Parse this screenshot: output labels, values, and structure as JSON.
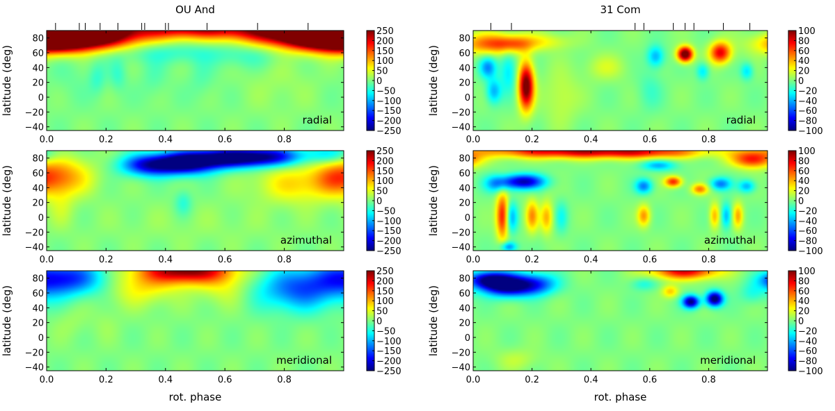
{
  "chart_data": [
    {
      "type": "heatmap",
      "title": "OU And",
      "component": "radial",
      "xlabel": "",
      "ylabel": "latitude (deg)",
      "xlim": [
        0.0,
        1.0
      ],
      "ylim": [
        -45,
        90
      ],
      "xticks": [
        "0.0",
        "0.2",
        "0.4",
        "0.6",
        "0.8"
      ],
      "yticks": [
        "80",
        "60",
        "40",
        "20",
        "0",
        "−20",
        "−40"
      ],
      "colorbar": {
        "min": -250,
        "max": 250,
        "ticks": [
          "250",
          "200",
          "150",
          "100",
          "50",
          "0",
          "−50",
          "−100",
          "−150",
          "−200",
          "−250"
        ]
      },
      "observation_phases": [
        0.03,
        0.11,
        0.13,
        0.18,
        0.24,
        0.32,
        0.33,
        0.4,
        0.41,
        0.54,
        0.71,
        0.88
      ],
      "blobs": [
        {
          "cx": 0.0,
          "cy": 85,
          "sx": 0.13,
          "sy": 13,
          "v": 280
        },
        {
          "cx": 0.15,
          "cy": 85,
          "sx": 0.12,
          "sy": 13,
          "v": 260
        },
        {
          "cx": 0.5,
          "cy": 97,
          "sx": 0.18,
          "sy": 12,
          "v": 260
        },
        {
          "cx": 0.85,
          "cy": 88,
          "sx": 0.13,
          "sy": 13,
          "v": 250
        },
        {
          "cx": 1.0,
          "cy": 82,
          "sx": 0.1,
          "sy": 14,
          "v": 260
        },
        {
          "cx": 0.42,
          "cy": 60,
          "sx": 0.14,
          "sy": 10,
          "v": -40
        },
        {
          "cx": 0.68,
          "cy": 55,
          "sx": 0.08,
          "sy": 12,
          "v": -30
        },
        {
          "cx": 0.08,
          "cy": 30,
          "sx": 0.05,
          "sy": 25,
          "v": -12
        },
        {
          "cx": 0.17,
          "cy": 25,
          "sx": 0.02,
          "sy": 15,
          "v": -35
        },
        {
          "cx": 0.24,
          "cy": 30,
          "sx": 0.02,
          "sy": 15,
          "v": -35
        },
        {
          "cx": 0.36,
          "cy": 25,
          "sx": 0.03,
          "sy": 20,
          "v": -20
        },
        {
          "cx": 0.52,
          "cy": 25,
          "sx": 0.03,
          "sy": 20,
          "v": -20
        },
        {
          "cx": 0.78,
          "cy": 20,
          "sx": 0.08,
          "sy": 30,
          "v": 15
        }
      ]
    },
    {
      "type": "heatmap",
      "title": "",
      "component": "azimuthal",
      "xlabel": "",
      "ylabel": "latitude (deg)",
      "xlim": [
        0.0,
        1.0
      ],
      "ylim": [
        -45,
        90
      ],
      "xticks": [
        "0.0",
        "0.2",
        "0.4",
        "0.6",
        "0.8"
      ],
      "yticks": [
        "80",
        "60",
        "40",
        "20",
        "0",
        "−20",
        "−40"
      ],
      "colorbar": {
        "min": -250,
        "max": 250,
        "ticks": [
          "250",
          "200",
          "150",
          "100",
          "50",
          "0",
          "−50",
          "−100",
          "−150",
          "−200",
          "−250"
        ]
      },
      "blobs": [
        {
          "cx": 0.45,
          "cy": 72,
          "sx": 0.08,
          "sy": 10,
          "v": -260
        },
        {
          "cx": 0.6,
          "cy": 80,
          "sx": 0.1,
          "sy": 9,
          "v": -250
        },
        {
          "cx": 0.75,
          "cy": 82,
          "sx": 0.08,
          "sy": 9,
          "v": -170
        },
        {
          "cx": 0.33,
          "cy": 70,
          "sx": 0.06,
          "sy": 10,
          "v": -140
        },
        {
          "cx": 0.95,
          "cy": 85,
          "sx": 0.06,
          "sy": 8,
          "v": -70
        },
        {
          "cx": 0.05,
          "cy": 55,
          "sx": 0.07,
          "sy": 18,
          "v": 110
        },
        {
          "cx": 0.85,
          "cy": 45,
          "sx": 0.1,
          "sy": 18,
          "v": 80
        },
        {
          "cx": 0.97,
          "cy": 55,
          "sx": 0.05,
          "sy": 15,
          "v": 70
        },
        {
          "cx": 0.05,
          "cy": 15,
          "sx": 0.03,
          "sy": 20,
          "v": 30
        },
        {
          "cx": 0.46,
          "cy": 20,
          "sx": 0.02,
          "sy": 12,
          "v": -45
        },
        {
          "cx": 0.5,
          "cy": -10,
          "sx": 0.25,
          "sy": 20,
          "v": 10
        }
      ]
    },
    {
      "type": "heatmap",
      "title": "",
      "component": "meridional",
      "xlabel": "rot. phase",
      "ylabel": "latitude (deg)",
      "xlim": [
        0.0,
        1.0
      ],
      "ylim": [
        -45,
        90
      ],
      "xticks": [
        "0.0",
        "0.2",
        "0.4",
        "0.6",
        "0.8"
      ],
      "yticks": [
        "80",
        "60",
        "40",
        "20",
        "0",
        "−20",
        "−40"
      ],
      "colorbar": {
        "min": -250,
        "max": 250,
        "ticks": [
          "250",
          "200",
          "150",
          "100",
          "50",
          "0",
          "−50",
          "−100",
          "−150",
          "−200",
          "−250"
        ]
      },
      "blobs": [
        {
          "cx": 0.05,
          "cy": 80,
          "sx": 0.1,
          "sy": 16,
          "v": -180
        },
        {
          "cx": 0.85,
          "cy": 65,
          "sx": 0.1,
          "sy": 20,
          "v": -140
        },
        {
          "cx": 0.47,
          "cy": 92,
          "sx": 0.1,
          "sy": 13,
          "v": 260
        },
        {
          "cx": 0.32,
          "cy": 70,
          "sx": 0.08,
          "sy": 18,
          "v": 70
        },
        {
          "cx": 0.6,
          "cy": 70,
          "sx": 0.06,
          "sy": 18,
          "v": 50
        },
        {
          "cx": 0.08,
          "cy": 20,
          "sx": 0.04,
          "sy": 15,
          "v": 15
        },
        {
          "cx": 0.2,
          "cy": 20,
          "sx": 0.03,
          "sy": 15,
          "v": 12
        }
      ]
    },
    {
      "type": "heatmap",
      "title": "31 Com",
      "component": "radial",
      "xlabel": "",
      "ylabel": "latitude (deg)",
      "xlim": [
        0.0,
        1.0
      ],
      "ylim": [
        -45,
        90
      ],
      "xticks": [
        "0.0",
        "0.2",
        "0.4",
        "0.6",
        "0.8"
      ],
      "yticks": [
        "80",
        "60",
        "40",
        "20",
        "0",
        "−20",
        "−40"
      ],
      "colorbar": {
        "min": -100,
        "max": 100,
        "ticks": [
          "100",
          "80",
          "60",
          "40",
          "20",
          "0",
          "−20",
          "−40",
          "−60",
          "−80",
          "−100"
        ]
      },
      "observation_phases": [
        0.06,
        0.13,
        0.55,
        0.58,
        0.68,
        0.72,
        0.75,
        0.85,
        0.94
      ],
      "blobs": [
        {
          "cx": 0.18,
          "cy": 15,
          "sx": 0.018,
          "sy": 22,
          "v": 110
        },
        {
          "cx": 0.05,
          "cy": 72,
          "sx": 0.07,
          "sy": 10,
          "v": 50
        },
        {
          "cx": 0.14,
          "cy": 72,
          "sx": 0.05,
          "sy": 8,
          "v": 40
        },
        {
          "cx": 0.25,
          "cy": 75,
          "sx": 0.06,
          "sy": 8,
          "v": 20
        },
        {
          "cx": 0.05,
          "cy": 40,
          "sx": 0.02,
          "sy": 10,
          "v": -45
        },
        {
          "cx": 0.07,
          "cy": 8,
          "sx": 0.018,
          "sy": 12,
          "v": -40
        },
        {
          "cx": 0.12,
          "cy": 35,
          "sx": 0.02,
          "sy": 20,
          "v": -30
        },
        {
          "cx": 0.72,
          "cy": 58,
          "sx": 0.018,
          "sy": 7,
          "v": 120
        },
        {
          "cx": 0.84,
          "cy": 60,
          "sx": 0.025,
          "sy": 10,
          "v": 80
        },
        {
          "cx": 0.62,
          "cy": 55,
          "sx": 0.02,
          "sy": 10,
          "v": -40
        },
        {
          "cx": 0.78,
          "cy": 35,
          "sx": 0.015,
          "sy": 8,
          "v": -30
        },
        {
          "cx": 0.93,
          "cy": 35,
          "sx": 0.015,
          "sy": 8,
          "v": -30
        },
        {
          "cx": 0.45,
          "cy": 40,
          "sx": 0.05,
          "sy": 12,
          "v": 15
        },
        {
          "cx": 0.3,
          "cy": 0,
          "sx": 0.04,
          "sy": 25,
          "v": 15
        },
        {
          "cx": 0.6,
          "cy": 10,
          "sx": 0.03,
          "sy": 20,
          "v": -12
        }
      ]
    },
    {
      "type": "heatmap",
      "title": "",
      "component": "azimuthal",
      "xlabel": "",
      "ylabel": "latitude (deg)",
      "xlim": [
        0.0,
        1.0
      ],
      "ylim": [
        -45,
        90
      ],
      "xticks": [
        "0.0",
        "0.2",
        "0.4",
        "0.6",
        "0.8"
      ],
      "yticks": [
        "80",
        "60",
        "40",
        "20",
        "0",
        "−20",
        "−40"
      ],
      "colorbar": {
        "min": -100,
        "max": 100,
        "ticks": [
          "100",
          "80",
          "60",
          "40",
          "20",
          "0",
          "−20",
          "−40",
          "−60",
          "−80",
          "−100"
        ]
      },
      "blobs": [
        {
          "cx": 0.3,
          "cy": 90,
          "sx": 0.2,
          "sy": 7,
          "v": 80
        },
        {
          "cx": 0.6,
          "cy": 88,
          "sx": 0.15,
          "sy": 6,
          "v": 50
        },
        {
          "cx": 0.95,
          "cy": 78,
          "sx": 0.05,
          "sy": 8,
          "v": 70
        },
        {
          "cx": 0.1,
          "cy": 2,
          "sx": 0.015,
          "sy": 22,
          "v": 75
        },
        {
          "cx": 0.17,
          "cy": 48,
          "sx": 0.05,
          "sy": 7,
          "v": -90
        },
        {
          "cx": 0.08,
          "cy": 45,
          "sx": 0.03,
          "sy": 8,
          "v": -40
        },
        {
          "cx": 0.13,
          "cy": 0,
          "sx": 0.015,
          "sy": 15,
          "v": -40
        },
        {
          "cx": 0.2,
          "cy": 2,
          "sx": 0.015,
          "sy": 15,
          "v": 45
        },
        {
          "cx": 0.25,
          "cy": 0,
          "sx": 0.015,
          "sy": 15,
          "v": 40
        },
        {
          "cx": 0.3,
          "cy": 0,
          "sx": 0.015,
          "sy": 15,
          "v": -20
        },
        {
          "cx": 0.58,
          "cy": 2,
          "sx": 0.015,
          "sy": 10,
          "v": 45
        },
        {
          "cx": 0.63,
          "cy": 70,
          "sx": 0.04,
          "sy": 5,
          "v": -40
        },
        {
          "cx": 0.68,
          "cy": 48,
          "sx": 0.02,
          "sy": 5,
          "v": 70
        },
        {
          "cx": 0.58,
          "cy": 42,
          "sx": 0.02,
          "sy": 7,
          "v": -50
        },
        {
          "cx": 0.77,
          "cy": 38,
          "sx": 0.02,
          "sy": 5,
          "v": 50
        },
        {
          "cx": 0.84,
          "cy": 45,
          "sx": 0.025,
          "sy": 6,
          "v": -50
        },
        {
          "cx": 0.93,
          "cy": 42,
          "sx": 0.02,
          "sy": 6,
          "v": -40
        },
        {
          "cx": 0.82,
          "cy": 2,
          "sx": 0.012,
          "sy": 12,
          "v": 40
        },
        {
          "cx": 0.86,
          "cy": 2,
          "sx": 0.012,
          "sy": 12,
          "v": -40
        },
        {
          "cx": 0.9,
          "cy": 2,
          "sx": 0.012,
          "sy": 12,
          "v": 40
        },
        {
          "cx": 0.12,
          "cy": -40,
          "sx": 0.02,
          "sy": 5,
          "v": -50
        }
      ]
    },
    {
      "type": "heatmap",
      "title": "",
      "component": "meridional",
      "xlabel": "rot. phase",
      "ylabel": "latitude (deg)",
      "xlim": [
        0.0,
        1.0
      ],
      "ylim": [
        -45,
        90
      ],
      "xticks": [
        "0.0",
        "0.2",
        "0.4",
        "0.6",
        "0.8"
      ],
      "yticks": [
        "80",
        "60",
        "40",
        "20",
        "0",
        "−20",
        "−40"
      ],
      "colorbar": {
        "min": -100,
        "max": 100,
        "ticks": [
          "100",
          "80",
          "60",
          "40",
          "20",
          "0",
          "−20",
          "−40",
          "−60",
          "−80",
          "−100"
        ]
      },
      "blobs": [
        {
          "cx": 0.12,
          "cy": 70,
          "sx": 0.06,
          "sy": 10,
          "v": -110
        },
        {
          "cx": 0.05,
          "cy": 78,
          "sx": 0.05,
          "sy": 8,
          "v": -80
        },
        {
          "cx": 0.22,
          "cy": 72,
          "sx": 0.05,
          "sy": 10,
          "v": -50
        },
        {
          "cx": 0.72,
          "cy": 90,
          "sx": 0.08,
          "sy": 8,
          "v": 80
        },
        {
          "cx": 0.67,
          "cy": 62,
          "sx": 0.02,
          "sy": 6,
          "v": 35
        },
        {
          "cx": 0.74,
          "cy": 48,
          "sx": 0.02,
          "sy": 6,
          "v": -100
        },
        {
          "cx": 0.82,
          "cy": 52,
          "sx": 0.02,
          "sy": 7,
          "v": -110
        },
        {
          "cx": 0.58,
          "cy": 72,
          "sx": 0.03,
          "sy": 6,
          "v": -20
        },
        {
          "cx": 0.15,
          "cy": -30,
          "sx": 0.05,
          "sy": 10,
          "v": 12
        },
        {
          "cx": 0.95,
          "cy": 60,
          "sx": 0.03,
          "sy": 10,
          "v": -20
        }
      ]
    }
  ]
}
